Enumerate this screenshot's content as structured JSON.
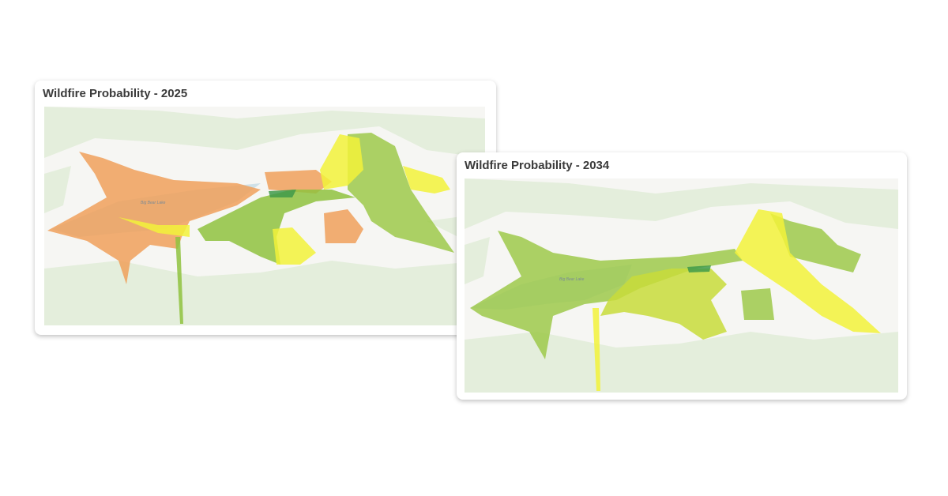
{
  "cards": [
    {
      "title": "Wildfire Probability - 2025",
      "map_label": "Big Bear Lake"
    },
    {
      "title": "Wildfire Probability - 2034",
      "map_label": "Big Bear Lake"
    }
  ]
}
